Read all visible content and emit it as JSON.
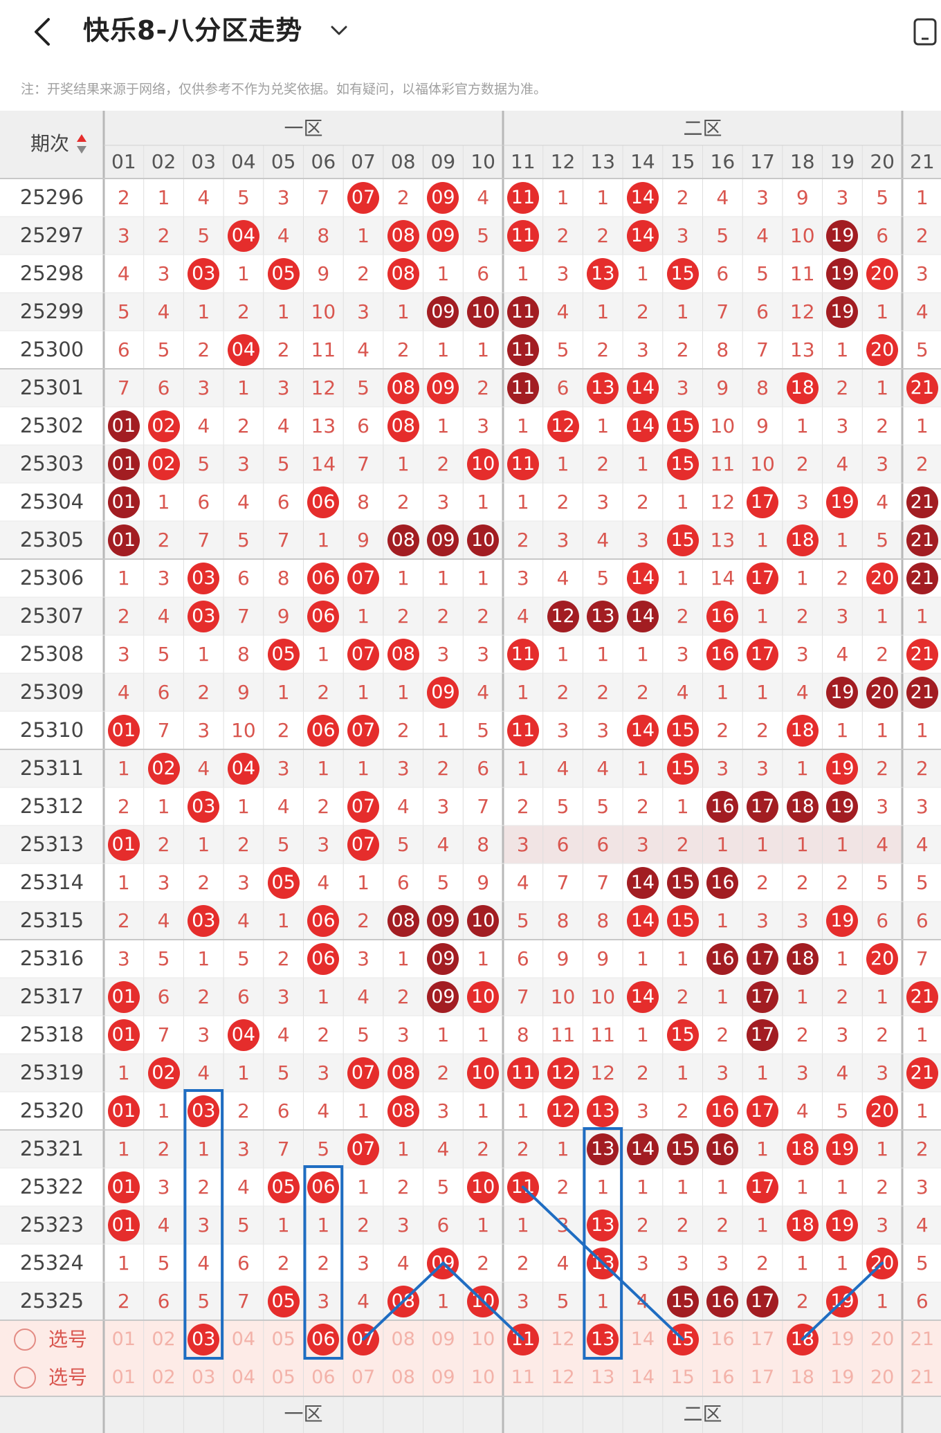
{
  "header": {
    "title": "快乐8-八分区走势",
    "back_icon": "chevron-left-icon",
    "dropdown_icon": "chevron-down-icon",
    "device_icon": "device-rotate-icon"
  },
  "note": "注：开奖结果来源于网络，仅供参考不作为兑奖依据。如有疑问，以福体彩官方数据为准。",
  "table": {
    "period_header": "期次",
    "sort_icon": "sort-updown-icon",
    "zones": [
      "一区",
      "二区"
    ],
    "columns": [
      "01",
      "02",
      "03",
      "04",
      "05",
      "06",
      "07",
      "08",
      "09",
      "10",
      "11",
      "12",
      "13",
      "14",
      "15",
      "16",
      "17",
      "18",
      "19",
      "20",
      "21"
    ],
    "rows": [
      {
        "period": "25296",
        "values": [
          "2",
          "1",
          "4",
          "5",
          "3",
          "7",
          "07",
          "2",
          "09",
          "4",
          "11",
          "1",
          "1",
          "14",
          "2",
          "4",
          "3",
          "9",
          "3",
          "5",
          "1"
        ],
        "dark": []
      },
      {
        "period": "25297",
        "values": [
          "3",
          "2",
          "5",
          "04",
          "4",
          "8",
          "1",
          "08",
          "09",
          "5",
          "11",
          "2",
          "2",
          "14",
          "3",
          "5",
          "4",
          "10",
          "19",
          "6",
          "2"
        ],
        "dark": [
          "19"
        ]
      },
      {
        "period": "25298",
        "values": [
          "4",
          "3",
          "03",
          "1",
          "05",
          "9",
          "2",
          "08",
          "1",
          "6",
          "1",
          "3",
          "13",
          "1",
          "15",
          "6",
          "5",
          "11",
          "19",
          "20",
          "3"
        ],
        "dark": [
          "19"
        ]
      },
      {
        "period": "25299",
        "values": [
          "5",
          "4",
          "1",
          "2",
          "1",
          "10",
          "3",
          "1",
          "09",
          "10",
          "11",
          "4",
          "1",
          "2",
          "1",
          "7",
          "6",
          "12",
          "19",
          "1",
          "4"
        ],
        "dark": [
          "09",
          "10",
          "11",
          "19"
        ]
      },
      {
        "period": "25300",
        "values": [
          "6",
          "5",
          "2",
          "04",
          "2",
          "11",
          "4",
          "2",
          "1",
          "1",
          "11",
          "5",
          "2",
          "3",
          "2",
          "8",
          "7",
          "13",
          "1",
          "20",
          "5"
        ],
        "dark": [
          "11"
        ]
      },
      {
        "period": "25301",
        "values": [
          "7",
          "6",
          "3",
          "1",
          "3",
          "12",
          "5",
          "08",
          "09",
          "2",
          "11",
          "6",
          "13",
          "14",
          "3",
          "9",
          "8",
          "18",
          "2",
          "1",
          "21"
        ],
        "dark": [
          "11"
        ]
      },
      {
        "period": "25302",
        "values": [
          "01",
          "02",
          "4",
          "2",
          "4",
          "13",
          "6",
          "08",
          "1",
          "3",
          "1",
          "12",
          "1",
          "14",
          "15",
          "10",
          "9",
          "1",
          "3",
          "2",
          "1"
        ],
        "dark": [
          "01"
        ]
      },
      {
        "period": "25303",
        "values": [
          "01",
          "02",
          "5",
          "3",
          "5",
          "14",
          "7",
          "1",
          "2",
          "10",
          "11",
          "1",
          "2",
          "1",
          "15",
          "11",
          "10",
          "2",
          "4",
          "3",
          "2"
        ],
        "dark": [
          "01"
        ]
      },
      {
        "period": "25304",
        "values": [
          "01",
          "1",
          "6",
          "4",
          "6",
          "06",
          "8",
          "2",
          "3",
          "1",
          "1",
          "2",
          "3",
          "2",
          "1",
          "12",
          "17",
          "3",
          "19",
          "4",
          "21"
        ],
        "dark": [
          "01",
          "21"
        ]
      },
      {
        "period": "25305",
        "values": [
          "01",
          "2",
          "7",
          "5",
          "7",
          "1",
          "9",
          "08",
          "09",
          "10",
          "2",
          "3",
          "4",
          "3",
          "15",
          "13",
          "1",
          "18",
          "1",
          "5",
          "21"
        ],
        "dark": [
          "01",
          "08",
          "09",
          "10",
          "21"
        ]
      },
      {
        "period": "25306",
        "values": [
          "1",
          "3",
          "03",
          "6",
          "8",
          "06",
          "07",
          "1",
          "1",
          "1",
          "3",
          "4",
          "5",
          "14",
          "1",
          "14",
          "17",
          "1",
          "2",
          "20",
          "21"
        ],
        "dark": [
          "21"
        ]
      },
      {
        "period": "25307",
        "values": [
          "2",
          "4",
          "03",
          "7",
          "9",
          "06",
          "1",
          "2",
          "2",
          "2",
          "4",
          "12",
          "13",
          "14",
          "2",
          "16",
          "1",
          "2",
          "3",
          "1",
          "1"
        ],
        "dark": [
          "12",
          "13",
          "14"
        ]
      },
      {
        "period": "25308",
        "values": [
          "3",
          "5",
          "1",
          "8",
          "05",
          "1",
          "07",
          "08",
          "3",
          "3",
          "11",
          "1",
          "1",
          "1",
          "3",
          "16",
          "17",
          "3",
          "4",
          "2",
          "21"
        ],
        "dark": []
      },
      {
        "period": "25309",
        "values": [
          "4",
          "6",
          "2",
          "9",
          "1",
          "2",
          "1",
          "1",
          "09",
          "4",
          "1",
          "2",
          "2",
          "2",
          "4",
          "1",
          "1",
          "4",
          "19",
          "20",
          "21"
        ],
        "dark": [
          "19",
          "20",
          "21"
        ]
      },
      {
        "period": "25310",
        "values": [
          "01",
          "7",
          "3",
          "10",
          "2",
          "06",
          "07",
          "2",
          "1",
          "5",
          "11",
          "3",
          "3",
          "14",
          "15",
          "2",
          "2",
          "18",
          "1",
          "1",
          "1"
        ],
        "dark": []
      },
      {
        "period": "25311",
        "values": [
          "1",
          "02",
          "4",
          "04",
          "3",
          "1",
          "1",
          "3",
          "2",
          "6",
          "1",
          "4",
          "4",
          "1",
          "15",
          "3",
          "3",
          "1",
          "19",
          "2",
          "2"
        ],
        "dark": []
      },
      {
        "period": "25312",
        "values": [
          "2",
          "1",
          "03",
          "1",
          "4",
          "2",
          "07",
          "4",
          "3",
          "7",
          "2",
          "5",
          "5",
          "2",
          "1",
          "16",
          "17",
          "18",
          "19",
          "3",
          "3"
        ],
        "dark": [
          "16",
          "17",
          "18",
          "19"
        ]
      },
      {
        "period": "25313",
        "values": [
          "01",
          "2",
          "1",
          "2",
          "5",
          "3",
          "07",
          "5",
          "4",
          "8",
          "3",
          "6",
          "6",
          "3",
          "2",
          "1",
          "1",
          "1",
          "1",
          "4",
          "4"
        ],
        "dark": []
      },
      {
        "period": "25314",
        "values": [
          "1",
          "3",
          "2",
          "3",
          "05",
          "4",
          "1",
          "6",
          "5",
          "9",
          "4",
          "7",
          "7",
          "14",
          "15",
          "16",
          "2",
          "2",
          "2",
          "5",
          "5"
        ],
        "dark": [
          "14",
          "15",
          "16"
        ]
      },
      {
        "period": "25315",
        "values": [
          "2",
          "4",
          "03",
          "4",
          "1",
          "06",
          "2",
          "08",
          "09",
          "10",
          "5",
          "8",
          "8",
          "14",
          "15",
          "1",
          "3",
          "3",
          "19",
          "6",
          "6"
        ],
        "dark": [
          "08",
          "09",
          "10"
        ]
      },
      {
        "period": "25316",
        "values": [
          "3",
          "5",
          "1",
          "5",
          "2",
          "06",
          "3",
          "1",
          "09",
          "1",
          "6",
          "9",
          "9",
          "1",
          "1",
          "16",
          "17",
          "18",
          "1",
          "20",
          "7"
        ],
        "dark": [
          "09",
          "16",
          "17",
          "18"
        ]
      },
      {
        "period": "25317",
        "values": [
          "01",
          "6",
          "2",
          "6",
          "3",
          "1",
          "4",
          "2",
          "09",
          "10",
          "7",
          "10",
          "10",
          "14",
          "2",
          "1",
          "17",
          "1",
          "2",
          "1",
          "21"
        ],
        "dark": [
          "09",
          "17"
        ]
      },
      {
        "period": "25318",
        "values": [
          "01",
          "7",
          "3",
          "04",
          "4",
          "2",
          "5",
          "3",
          "1",
          "1",
          "8",
          "11",
          "11",
          "1",
          "15",
          "2",
          "17",
          "2",
          "3",
          "2",
          "1"
        ],
        "dark": [
          "17"
        ]
      },
      {
        "period": "25319",
        "values": [
          "1",
          "02",
          "4",
          "1",
          "5",
          "3",
          "07",
          "08",
          "2",
          "10",
          "11",
          "12",
          "12",
          "2",
          "1",
          "3",
          "1",
          "3",
          "4",
          "3",
          "21"
        ],
        "dark": []
      },
      {
        "period": "25320",
        "values": [
          "01",
          "1",
          "03",
          "2",
          "6",
          "4",
          "1",
          "08",
          "3",
          "1",
          "1",
          "12",
          "13",
          "3",
          "2",
          "16",
          "17",
          "4",
          "5",
          "20",
          "1"
        ],
        "dark": []
      },
      {
        "period": "25321",
        "values": [
          "1",
          "2",
          "1",
          "3",
          "7",
          "5",
          "07",
          "1",
          "4",
          "2",
          "2",
          "1",
          "13",
          "14",
          "15",
          "16",
          "1",
          "18",
          "19",
          "1",
          "2"
        ],
        "dark": [
          "13",
          "14",
          "15",
          "16"
        ]
      },
      {
        "period": "25322",
        "values": [
          "01",
          "3",
          "2",
          "4",
          "05",
          "06",
          "1",
          "2",
          "5",
          "10",
          "11",
          "2",
          "1",
          "1",
          "1",
          "1",
          "17",
          "1",
          "1",
          "2",
          "3"
        ],
        "dark": []
      },
      {
        "period": "25323",
        "values": [
          "01",
          "4",
          "3",
          "5",
          "1",
          "1",
          "2",
          "3",
          "6",
          "1",
          "1",
          "3",
          "13",
          "2",
          "2",
          "2",
          "1",
          "18",
          "19",
          "3",
          "4"
        ],
        "dark": []
      },
      {
        "period": "25324",
        "values": [
          "1",
          "5",
          "4",
          "6",
          "2",
          "2",
          "3",
          "4",
          "09",
          "2",
          "2",
          "4",
          "13",
          "3",
          "3",
          "3",
          "2",
          "1",
          "1",
          "20",
          "5"
        ],
        "dark": []
      },
      {
        "period": "25325",
        "values": [
          "2",
          "6",
          "5",
          "7",
          "05",
          "3",
          "4",
          "08",
          "1",
          "10",
          "3",
          "5",
          "1",
          "4",
          "15",
          "16",
          "17",
          "2",
          "19",
          "1",
          "6"
        ],
        "dark": [
          "15",
          "16",
          "17"
        ]
      }
    ],
    "select_rows": [
      {
        "label": "选号",
        "radio_icon": "radio-empty-icon",
        "picks": [
          "01",
          "02",
          "03",
          "04",
          "05",
          "06",
          "07",
          "08",
          "09",
          "10",
          "11",
          "12",
          "13",
          "14",
          "15",
          "16",
          "17",
          "18",
          "19",
          "20",
          "21"
        ],
        "selected": [
          "03",
          "06",
          "07",
          "11",
          "13",
          "15",
          "18"
        ]
      },
      {
        "label": "选号",
        "radio_icon": "radio-empty-icon",
        "picks": [
          "01",
          "02",
          "03",
          "04",
          "05",
          "06",
          "07",
          "08",
          "09",
          "10",
          "11",
          "12",
          "13",
          "14",
          "15",
          "16",
          "17",
          "18",
          "19",
          "20",
          "21"
        ],
        "selected": []
      }
    ]
  },
  "colors": {
    "hit": "#e52d2c",
    "hit_dark": "#a21d22",
    "miss_text": "#d9564f",
    "annotation_blue": "#1f6dc2",
    "header_bg": "#efefef",
    "select_bg": "#fdebe7"
  }
}
